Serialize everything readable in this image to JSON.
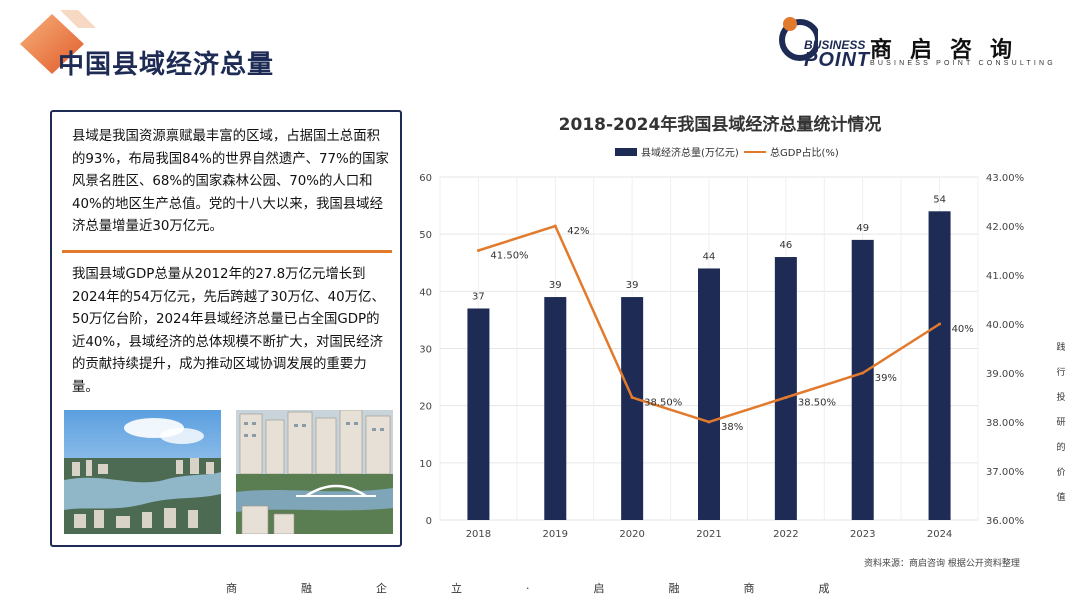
{
  "header": {
    "title": "中国县域经济总量"
  },
  "logo": {
    "word_line1": "BUSINESS",
    "word_line2": "POINT",
    "cn_name": "商启咨询",
    "en_name": "BUSINESS POINT CONSULTING"
  },
  "text_card": {
    "paragraph1": "县域是我国资源禀赋最丰富的区域，占据国土总面积的93%，布局我国84%的世界自然遗产、77%的国家风景名胜区、68%的国家森林公园、70%的人口和40%的地区生产总值。党的十八大以来，我国县域经济总量增量近30万亿元。",
    "paragraph2": "我国县域GDP总量从2012年的27.8万亿元增长到2024年的54万亿元，先后跨越了30万亿、40万亿、50万亿台阶，2024年县域经济总量已占全国GDP的近40%，县域经济的总体规模不断扩大，对国民经济的贡献持续提升，成为推动区域协调发展的重要力量。"
  },
  "colors": {
    "bar": "#1d2b55",
    "line": "#e27a2e",
    "accent": "#e27a2e"
  },
  "chart_data": {
    "type": "bar",
    "title": "2018-2024年我国县域经济总量统计情况",
    "categories": [
      "2018",
      "2019",
      "2020",
      "2021",
      "2022",
      "2023",
      "2024"
    ],
    "series": [
      {
        "name": "县域经济总量(万亿元)",
        "type": "bar",
        "axis": "left",
        "values": [
          37,
          39,
          39,
          44,
          46,
          49,
          54
        ],
        "labels": [
          "37",
          "39",
          "39",
          "44",
          "46",
          "49",
          "54"
        ]
      },
      {
        "name": "总GDP占比(%)",
        "type": "line",
        "axis": "right",
        "values": [
          41.5,
          42,
          38.5,
          38,
          38.5,
          39,
          40
        ],
        "labels": [
          "41.50%",
          "42%",
          "38.50%",
          "38%",
          "38.50%",
          "39%",
          "40%"
        ]
      }
    ],
    "y_left": {
      "min": 0,
      "max": 60,
      "ticks": [
        "0",
        "10",
        "20",
        "30",
        "40",
        "50",
        "60"
      ]
    },
    "y_right": {
      "min": 36,
      "max": 43,
      "ticks": [
        "36.00%",
        "37.00%",
        "38.00%",
        "39.00%",
        "40.00%",
        "41.00%",
        "42.00%",
        "43.00%"
      ]
    },
    "legend": "top-center",
    "grid": true
  },
  "source": "资料来源：商启咨询 根据公开资料整理",
  "vertical_note": "践行投研的价值",
  "footer_slogan": "商融企立·启融商成"
}
